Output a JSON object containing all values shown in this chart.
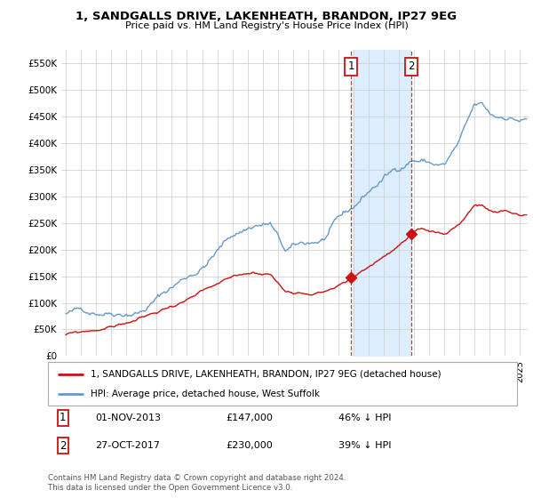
{
  "title": "1, SANDGALLS DRIVE, LAKENHEATH, BRANDON, IP27 9EG",
  "subtitle": "Price paid vs. HM Land Registry's House Price Index (HPI)",
  "ylim": [
    0,
    575000
  ],
  "yticks": [
    0,
    50000,
    100000,
    150000,
    200000,
    250000,
    300000,
    350000,
    400000,
    450000,
    500000,
    550000
  ],
  "ytick_labels": [
    "£0",
    "£50K",
    "£100K",
    "£150K",
    "£200K",
    "£250K",
    "£300K",
    "£350K",
    "£400K",
    "£450K",
    "£500K",
    "£550K"
  ],
  "hpi_color": "#6699cc",
  "price_color": "#cc1111",
  "sale1_year": 2013.84,
  "sale1_price": 147000,
  "sale2_year": 2017.82,
  "sale2_price": 230000,
  "legend_line1": "1, SANDGALLS DRIVE, LAKENHEATH, BRANDON, IP27 9EG (detached house)",
  "legend_line2": "HPI: Average price, detached house, West Suffolk",
  "table_row1": [
    "1",
    "01-NOV-2013",
    "£147,000",
    "46% ↓ HPI"
  ],
  "table_row2": [
    "2",
    "27-OCT-2017",
    "£230,000",
    "39% ↓ HPI"
  ],
  "copyright": "Contains HM Land Registry data © Crown copyright and database right 2024.\nThis data is licensed under the Open Government Licence v3.0.",
  "background_color": "#ffffff",
  "grid_color": "#cccccc",
  "shade_color": "#ddeeff"
}
